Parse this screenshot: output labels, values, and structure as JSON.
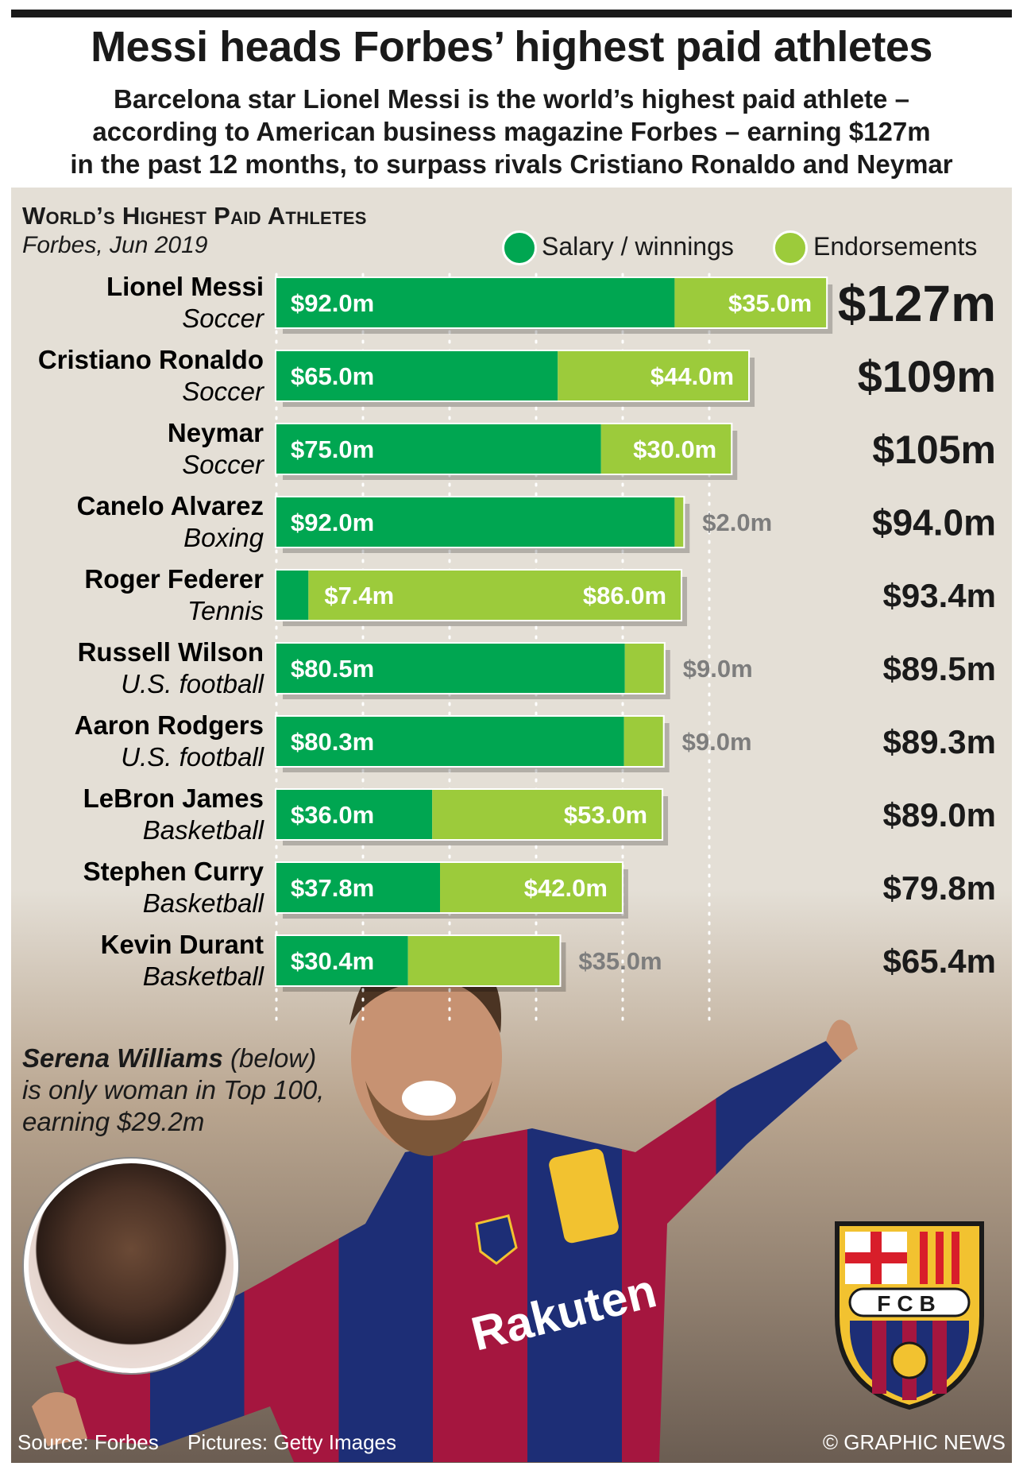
{
  "header": {
    "title": "Messi heads Forbes’ highest paid athletes",
    "subtitle_lines": [
      "Barcelona star Lionel Messi is the world’s highest paid athlete –",
      "according to American business magazine Forbes – earning $127m",
      "in the past 12 months, to surpass rivals Cristiano Ronaldo and Neymar"
    ]
  },
  "colors": {
    "salary": "#00a651",
    "endorsements": "#9ccb3b",
    "panel": "#e4dfd6"
  },
  "chart_data": {
    "type": "bar",
    "orientation": "horizontal",
    "stacked": true,
    "title": "World’s Highest Paid Athletes",
    "source": "Forbes, Jun 2019",
    "legend": {
      "placement": "top-right",
      "items": [
        "Salary / winnings",
        "Endorsements"
      ]
    },
    "units": "$m",
    "xlim": [
      0,
      135
    ],
    "grid": "dotted vertical",
    "series": [
      {
        "name": "Salary / winnings",
        "values": [
          92.0,
          65.0,
          75.0,
          92.0,
          7.4,
          80.5,
          80.3,
          36.0,
          37.8,
          30.4
        ]
      },
      {
        "name": "Endorsements",
        "values": [
          35.0,
          44.0,
          30.0,
          2.0,
          86.0,
          9.0,
          9.0,
          53.0,
          42.0,
          35.0
        ]
      }
    ],
    "athletes": [
      {
        "name": "Lionel Messi",
        "sport": "Soccer",
        "salary": 92.0,
        "endorsements": 35.0,
        "salary_label": "$92.0m",
        "endorsements_label": "$35.0m",
        "total_label": "$127m"
      },
      {
        "name": "Cristiano Ronaldo",
        "sport": "Soccer",
        "salary": 65.0,
        "endorsements": 44.0,
        "salary_label": "$65.0m",
        "endorsements_label": "$44.0m",
        "total_label": "$109m"
      },
      {
        "name": "Neymar",
        "sport": "Soccer",
        "salary": 75.0,
        "endorsements": 30.0,
        "salary_label": "$75.0m",
        "endorsements_label": "$30.0m",
        "total_label": "$105m"
      },
      {
        "name": "Canelo Alvarez",
        "sport": "Boxing",
        "salary": 92.0,
        "endorsements": 2.0,
        "salary_label": "$92.0m",
        "endorsements_label": "$2.0m",
        "total_label": "$94.0m"
      },
      {
        "name": "Roger Federer",
        "sport": "Tennis",
        "salary": 7.4,
        "endorsements": 86.0,
        "salary_label": "$7.4m",
        "endorsements_label": "$86.0m",
        "total_label": "$93.4m"
      },
      {
        "name": "Russell Wilson",
        "sport": "U.S. football",
        "salary": 80.5,
        "endorsements": 9.0,
        "salary_label": "$80.5m",
        "endorsements_label": "$9.0m",
        "total_label": "$89.5m"
      },
      {
        "name": "Aaron Rodgers",
        "sport": "U.S. football",
        "salary": 80.3,
        "endorsements": 9.0,
        "salary_label": "$80.3m",
        "endorsements_label": "$9.0m",
        "total_label": "$89.3m"
      },
      {
        "name": "LeBron James",
        "sport": "Basketball",
        "salary": 36.0,
        "endorsements": 53.0,
        "salary_label": "$36.0m",
        "endorsements_label": "$53.0m",
        "total_label": "$89.0m"
      },
      {
        "name": "Stephen Curry",
        "sport": "Basketball",
        "salary": 37.8,
        "endorsements": 42.0,
        "salary_label": "$37.8m",
        "endorsements_label": "$42.0m",
        "total_label": "$79.8m"
      },
      {
        "name": "Kevin Durant",
        "sport": "Basketball",
        "salary": 30.4,
        "endorsements": 35.0,
        "salary_label": "$30.4m",
        "endorsements_label": "$35.0m",
        "total_label": "$65.4m"
      }
    ]
  },
  "note": {
    "name": "Serena Williams",
    "rest_line1": " (below)",
    "line2": "is only woman in Top 100,",
    "line3": "earning $29.2m"
  },
  "crest": {
    "text": "FCB"
  },
  "photo_text": {
    "shirt_sponsor": "Rakuten"
  },
  "footer": {
    "source": "Source: Forbes",
    "pictures": "Pictures: Getty Images",
    "credit": "© GRAPHIC NEWS"
  }
}
